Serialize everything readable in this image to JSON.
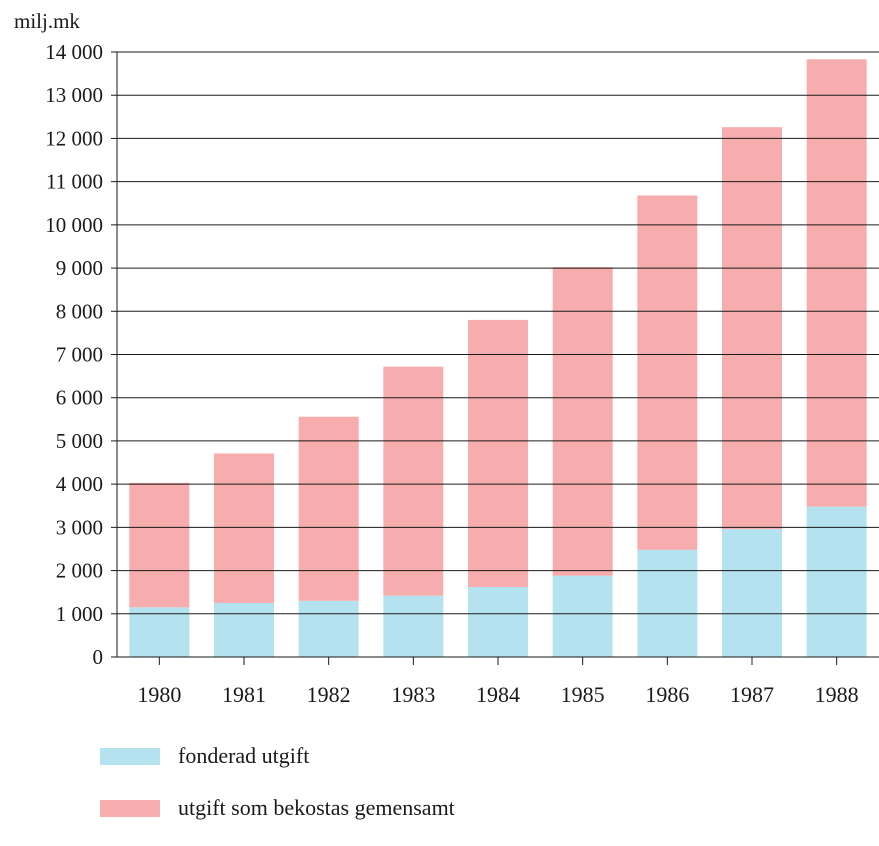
{
  "chart_data": {
    "type": "bar",
    "stacked": true,
    "title": "",
    "ylabel": "milj.mk",
    "xlabel": "",
    "categories": [
      "1980",
      "1981",
      "1982",
      "1983",
      "1984",
      "1985",
      "1986",
      "1987",
      "1988"
    ],
    "series": [
      {
        "name": "fonderad utgift",
        "color": "#b4e2ee",
        "values": [
          1150,
          1250,
          1300,
          1420,
          1620,
          1880,
          2480,
          2960,
          3480
        ]
      },
      {
        "name": "utgift som bekostas gemensamt",
        "color": "#f7adad",
        "values": [
          2880,
          3460,
          4260,
          5300,
          6180,
          7140,
          8200,
          9300,
          10350
        ]
      }
    ],
    "ylim": [
      0,
      14000
    ],
    "yticks": [
      0,
      1000,
      2000,
      3000,
      4000,
      5000,
      6000,
      7000,
      8000,
      9000,
      10000,
      11000,
      12000,
      13000,
      14000
    ],
    "ytick_labels": [
      "0",
      "1 000",
      "2 000",
      "3 000",
      "4 000",
      "5 000",
      "6 000",
      "7 000",
      "8 000",
      "9 000",
      "10 000",
      "11 000",
      "12 000",
      "13 000",
      "14 000"
    ],
    "grid": true,
    "legend_position": "bottom-left"
  }
}
